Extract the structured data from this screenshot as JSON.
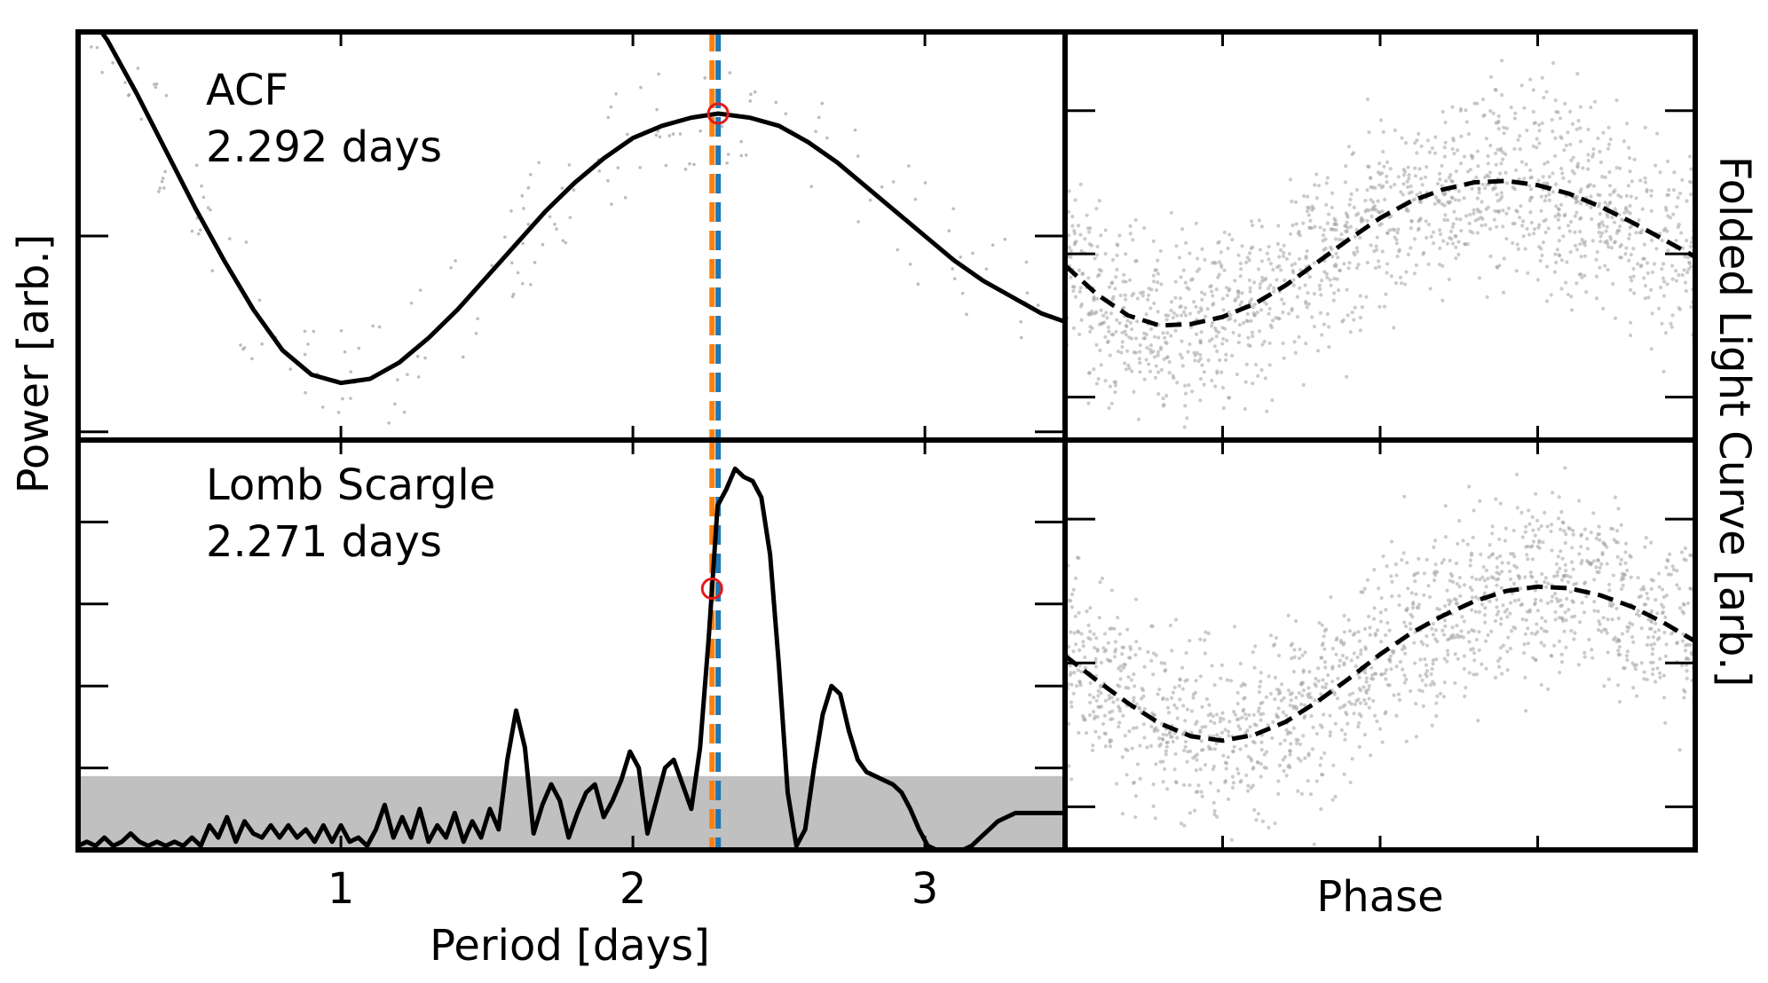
{
  "figure": {
    "ylabel_left": "Power [arb.]",
    "ylabel_right": "Folded Light Curve [arb.]",
    "xlabel_left": "Period [days]",
    "xlabel_right": "Phase",
    "colors": {
      "line": "#000000",
      "points": "#a0a0a0",
      "acf_marker": "#1f77b4",
      "ls_marker": "#ff7f0e",
      "peak_circle": "#e31a1c",
      "noise_band": "#c0c0c0"
    }
  },
  "chart_data": [
    {
      "id": "acf",
      "type": "line",
      "label": "ACF",
      "period_label": "2.292 days",
      "peak_period": 2.292,
      "xlim": [
        0.1,
        3.48
      ],
      "ylim": [
        0.0,
        1.0
      ],
      "xticks": [
        1,
        2,
        3
      ],
      "xtick_labels": [
        "1",
        "2",
        "3"
      ],
      "vlines": [
        {
          "x": 2.271,
          "color": "#ff7f0e"
        },
        {
          "x": 2.292,
          "color": "#1f77b4"
        }
      ],
      "curve": {
        "x": [
          0.1,
          0.2,
          0.3,
          0.4,
          0.5,
          0.6,
          0.7,
          0.8,
          0.9,
          1.0,
          1.1,
          1.2,
          1.3,
          1.4,
          1.5,
          1.6,
          1.7,
          1.8,
          1.9,
          2.0,
          2.1,
          2.2,
          2.292,
          2.4,
          2.5,
          2.6,
          2.7,
          2.8,
          2.9,
          3.0,
          3.1,
          3.2,
          3.3,
          3.4,
          3.48
        ],
        "y": [
          1.08,
          0.98,
          0.85,
          0.71,
          0.57,
          0.44,
          0.32,
          0.22,
          0.16,
          0.14,
          0.15,
          0.19,
          0.25,
          0.32,
          0.4,
          0.48,
          0.56,
          0.63,
          0.69,
          0.74,
          0.77,
          0.79,
          0.8,
          0.79,
          0.77,
          0.73,
          0.68,
          0.62,
          0.56,
          0.5,
          0.44,
          0.39,
          0.35,
          0.31,
          0.29
        ]
      }
    },
    {
      "id": "lomb-scargle",
      "type": "line",
      "label": "Lomb Scargle",
      "period_label": "2.271 days",
      "peak_period": 2.271,
      "xlim": [
        0.1,
        3.48
      ],
      "ylim": [
        0.0,
        1.0
      ],
      "xticks": [
        1,
        2,
        3
      ],
      "xtick_labels": [
        "1",
        "2",
        "3"
      ],
      "noise_level": 0.18,
      "vlines": [
        {
          "x": 2.271,
          "color": "#ff7f0e"
        },
        {
          "x": 2.292,
          "color": "#1f77b4"
        }
      ],
      "curve": {
        "x": [
          0.1,
          0.13,
          0.16,
          0.19,
          0.22,
          0.25,
          0.28,
          0.31,
          0.34,
          0.37,
          0.4,
          0.43,
          0.46,
          0.49,
          0.52,
          0.55,
          0.58,
          0.61,
          0.64,
          0.67,
          0.7,
          0.73,
          0.76,
          0.79,
          0.82,
          0.85,
          0.88,
          0.91,
          0.94,
          0.97,
          1.0,
          1.03,
          1.06,
          1.09,
          1.12,
          1.15,
          1.18,
          1.21,
          1.24,
          1.27,
          1.3,
          1.33,
          1.36,
          1.39,
          1.42,
          1.45,
          1.48,
          1.51,
          1.54,
          1.57,
          1.6,
          1.63,
          1.66,
          1.69,
          1.72,
          1.75,
          1.78,
          1.81,
          1.84,
          1.87,
          1.9,
          1.93,
          1.96,
          1.99,
          2.02,
          2.05,
          2.08,
          2.11,
          2.14,
          2.17,
          2.2,
          2.23,
          2.26,
          2.29,
          2.32,
          2.35,
          2.38,
          2.41,
          2.44,
          2.47,
          2.5,
          2.53,
          2.56,
          2.59,
          2.62,
          2.65,
          2.68,
          2.71,
          2.74,
          2.77,
          2.8,
          2.83,
          2.86,
          2.89,
          2.92,
          2.95,
          2.98,
          3.01,
          3.04,
          3.07,
          3.1,
          3.13,
          3.16,
          3.19,
          3.22,
          3.25,
          3.28,
          3.31,
          3.34,
          3.37,
          3.4,
          3.43,
          3.46,
          3.48
        ],
        "y": [
          0.01,
          0.02,
          0.01,
          0.03,
          0.01,
          0.02,
          0.04,
          0.02,
          0.01,
          0.02,
          0.01,
          0.02,
          0.01,
          0.03,
          0.01,
          0.06,
          0.03,
          0.08,
          0.02,
          0.07,
          0.04,
          0.03,
          0.06,
          0.03,
          0.06,
          0.03,
          0.05,
          0.02,
          0.06,
          0.02,
          0.06,
          0.02,
          0.03,
          0.01,
          0.05,
          0.11,
          0.03,
          0.08,
          0.03,
          0.1,
          0.02,
          0.06,
          0.03,
          0.09,
          0.02,
          0.07,
          0.03,
          0.1,
          0.05,
          0.22,
          0.34,
          0.25,
          0.04,
          0.11,
          0.16,
          0.12,
          0.03,
          0.09,
          0.14,
          0.16,
          0.08,
          0.12,
          0.17,
          0.24,
          0.2,
          0.04,
          0.12,
          0.2,
          0.22,
          0.16,
          0.1,
          0.25,
          0.52,
          0.84,
          0.88,
          0.93,
          0.91,
          0.9,
          0.86,
          0.72,
          0.45,
          0.14,
          0.01,
          0.05,
          0.2,
          0.33,
          0.4,
          0.38,
          0.29,
          0.22,
          0.19,
          0.18,
          0.17,
          0.16,
          0.14,
          0.1,
          0.05,
          0.01,
          0.0,
          0.0,
          0.0,
          0.0,
          0.01,
          0.03,
          0.05,
          0.07,
          0.08,
          0.09,
          0.09,
          0.09,
          0.09,
          0.09,
          0.09,
          0.09
        ]
      }
    },
    {
      "id": "folded-acf",
      "type": "scatter",
      "xlabel": "",
      "xlim": [
        0.0,
        1.0
      ],
      "ylim": [
        -1.3,
        1.55
      ],
      "model": {
        "x": [
          0.0,
          0.05,
          0.1,
          0.15,
          0.2,
          0.25,
          0.3,
          0.35,
          0.4,
          0.45,
          0.5,
          0.55,
          0.6,
          0.65,
          0.7,
          0.75,
          0.8,
          0.85,
          0.9,
          0.95,
          1.0
        ],
        "y": [
          -0.08,
          -0.28,
          -0.43,
          -0.5,
          -0.49,
          -0.44,
          -0.35,
          -0.22,
          -0.06,
          0.1,
          0.25,
          0.37,
          0.45,
          0.5,
          0.51,
          0.48,
          0.42,
          0.33,
          0.22,
          0.1,
          -0.02
        ]
      }
    },
    {
      "id": "folded-ls",
      "type": "scatter",
      "xlabel": "Phase",
      "xlim": [
        0.0,
        1.0
      ],
      "ylim": [
        -1.3,
        1.55
      ],
      "model": {
        "x": [
          0.0,
          0.05,
          0.1,
          0.15,
          0.2,
          0.25,
          0.3,
          0.35,
          0.4,
          0.45,
          0.5,
          0.55,
          0.6,
          0.65,
          0.7,
          0.75,
          0.8,
          0.85,
          0.9,
          0.95,
          1.0
        ],
        "y": [
          0.05,
          -0.12,
          -0.28,
          -0.42,
          -0.51,
          -0.54,
          -0.5,
          -0.41,
          -0.27,
          -0.11,
          0.06,
          0.21,
          0.33,
          0.43,
          0.5,
          0.53,
          0.52,
          0.47,
          0.39,
          0.28,
          0.15
        ]
      }
    }
  ]
}
